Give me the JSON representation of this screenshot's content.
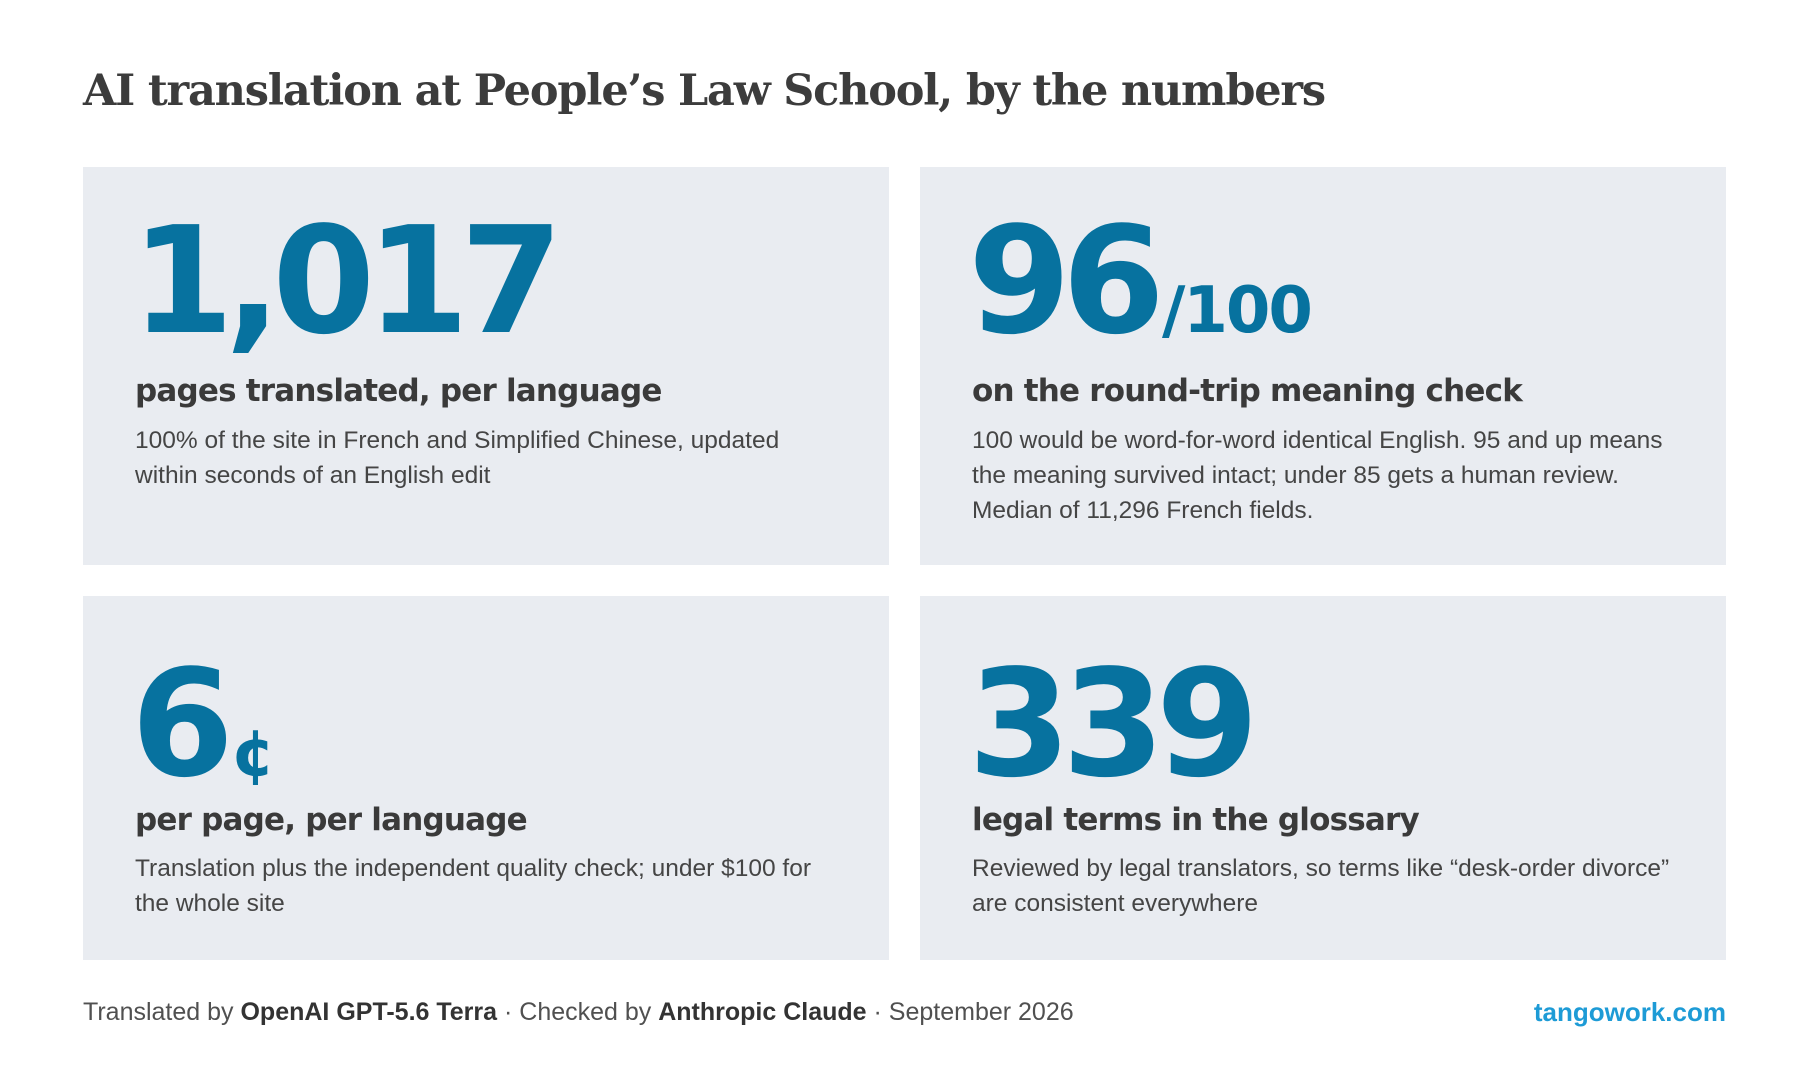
{
  "header": {
    "title": "AI translation at People’s Law School, by the numbers"
  },
  "stats": [
    {
      "value": "1,017",
      "suffix": "",
      "heading": "pages translated, per language",
      "description": "100% of the site in French and Simplified Chinese, updated within seconds of an English edit"
    },
    {
      "value": "96",
      "suffix": "/100",
      "heading": "on the round-trip meaning check",
      "description": "100 would be word-for-word identical English. 95 and up means the meaning survived intact; under 85 gets a human review. Median of 11,296 French fields."
    },
    {
      "value": "6",
      "suffix": "¢",
      "heading": "per page, per language",
      "description": "Translation plus the independent quality check; under $100 for the whole site"
    },
    {
      "value": "339",
      "suffix": "",
      "heading": "legal terms in the glossary",
      "description": "Reviewed by legal translators, so terms like “desk-order divorce” are consistent everywhere"
    }
  ],
  "footer": {
    "translated_prefix": "Translated by ",
    "translator": "OpenAI GPT-5.6 Terra",
    "checked_prefix": " · Checked by ",
    "checker": "Anthropic Claude",
    "date_text": " · September 2026",
    "link": "tangowork.com"
  },
  "colors": {
    "accent": "#07729f",
    "card_bg": "#e9ecf1",
    "link": "#1d9bd6"
  }
}
